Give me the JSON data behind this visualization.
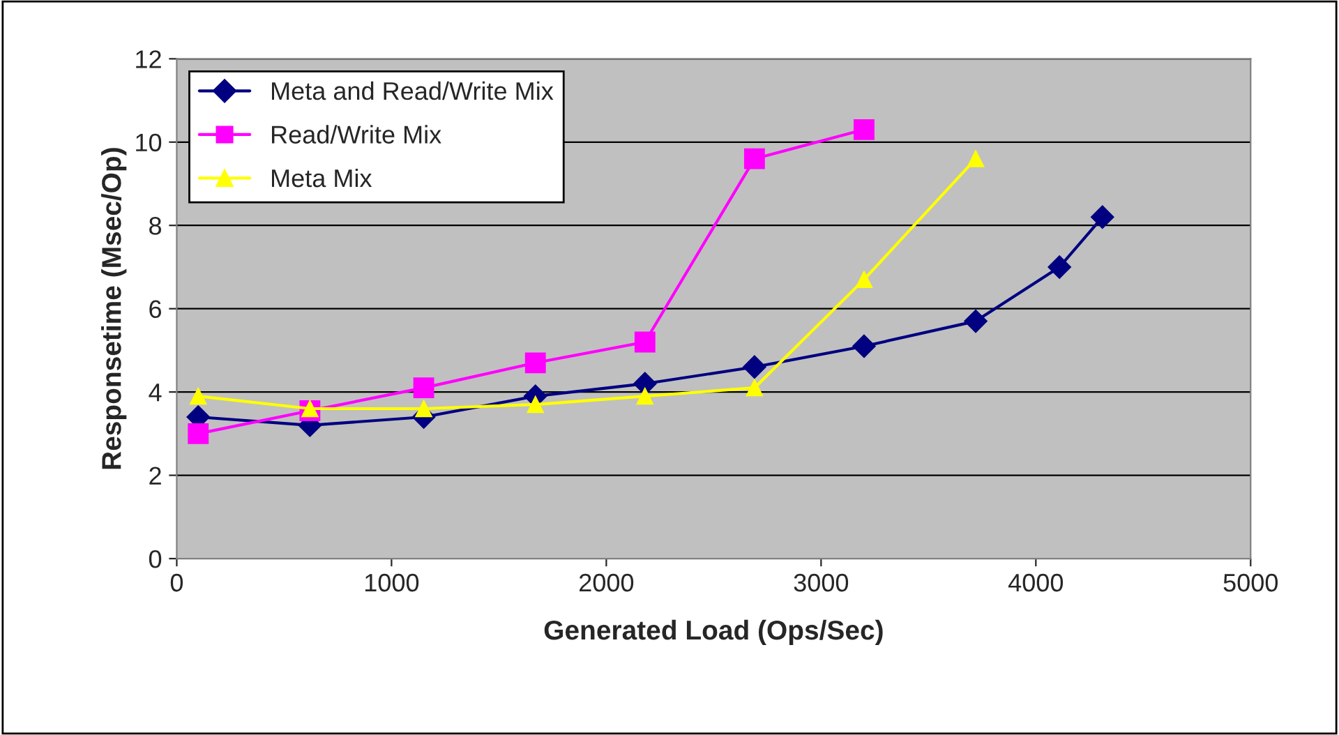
{
  "chart_data": {
    "type": "line",
    "xlabel": "Generated Load (Ops/Sec)",
    "ylabel": "Responsetime (Msec/Op)",
    "xlim": [
      0,
      5000
    ],
    "xticks": [
      0,
      1000,
      2000,
      3000,
      4000,
      5000
    ],
    "ylim": [
      0,
      12
    ],
    "yticks": [
      0,
      2,
      4,
      6,
      8,
      10,
      12
    ],
    "grid": "y",
    "legend": "top left",
    "line_style": "solid",
    "series": [
      {
        "name": "Meta and Read/Write Mix",
        "color": "#000080",
        "marker": "diamond",
        "x": [
          100,
          620,
          1150,
          1670,
          2180,
          2690,
          3200,
          3720,
          4110,
          4310
        ],
        "values": [
          3.4,
          3.2,
          3.4,
          3.9,
          4.2,
          4.6,
          5.1,
          5.7,
          7.0,
          8.2
        ]
      },
      {
        "name": "Read/Write Mix",
        "color": "#ff00ff",
        "marker": "square",
        "x": [
          100,
          620,
          1150,
          1670,
          2180,
          2690,
          3200
        ],
        "values": [
          3.0,
          3.55,
          4.1,
          4.7,
          5.2,
          9.6,
          10.3
        ]
      },
      {
        "name": "Meta Mix",
        "color": "#ffff00",
        "marker": "triangle",
        "x": [
          100,
          620,
          1150,
          1670,
          2180,
          2690,
          3200,
          3720
        ],
        "values": [
          3.9,
          3.6,
          3.6,
          3.7,
          3.9,
          4.1,
          6.7,
          9.6
        ]
      }
    ]
  }
}
